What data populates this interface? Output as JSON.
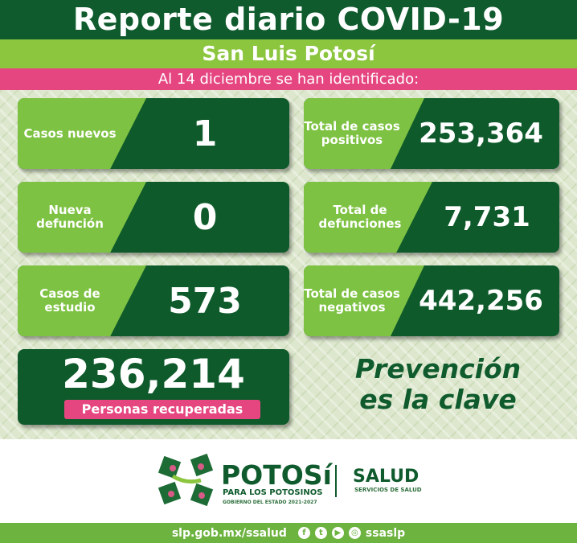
{
  "header": {
    "title": "Reporte diario COVID-19",
    "region": "San Luis Potosí",
    "date_line": "Al 14 diciembre se han identificado:"
  },
  "cards": [
    {
      "label": "Casos nuevos",
      "value": "1"
    },
    {
      "label": "Total de casos positivos",
      "value": "253,364"
    },
    {
      "label": "Nueva defunción",
      "value": "0"
    },
    {
      "label": "Total de defunciones",
      "value": "7,731"
    },
    {
      "label": "Casos de estudio",
      "value": "573"
    },
    {
      "label": "Total de casos negativos",
      "value": "442,256"
    }
  ],
  "recovered": {
    "value": "236,214",
    "label": "Personas recuperadas"
  },
  "slogan": {
    "line1": "Prevención",
    "line2": "es la clave"
  },
  "logos": {
    "potosi": "POTOSí",
    "potosi_sub": "PARA LOS POTOSINOS",
    "potosi_sub2": "GOBIERNO DEL ESTADO 2021-2027",
    "salud": "SALUD",
    "salud_sub": "SERVICIOS DE SALUD"
  },
  "footer": {
    "url": "slp.gob.mx/ssalud",
    "handle": "ssaslp",
    "icons": [
      "facebook-icon",
      "twitter-icon",
      "youtube-icon",
      "instagram-icon"
    ]
  },
  "colors": {
    "dark_green": "#0f5b2d",
    "light_green": "#8cc63f",
    "pink": "#e5467f"
  }
}
